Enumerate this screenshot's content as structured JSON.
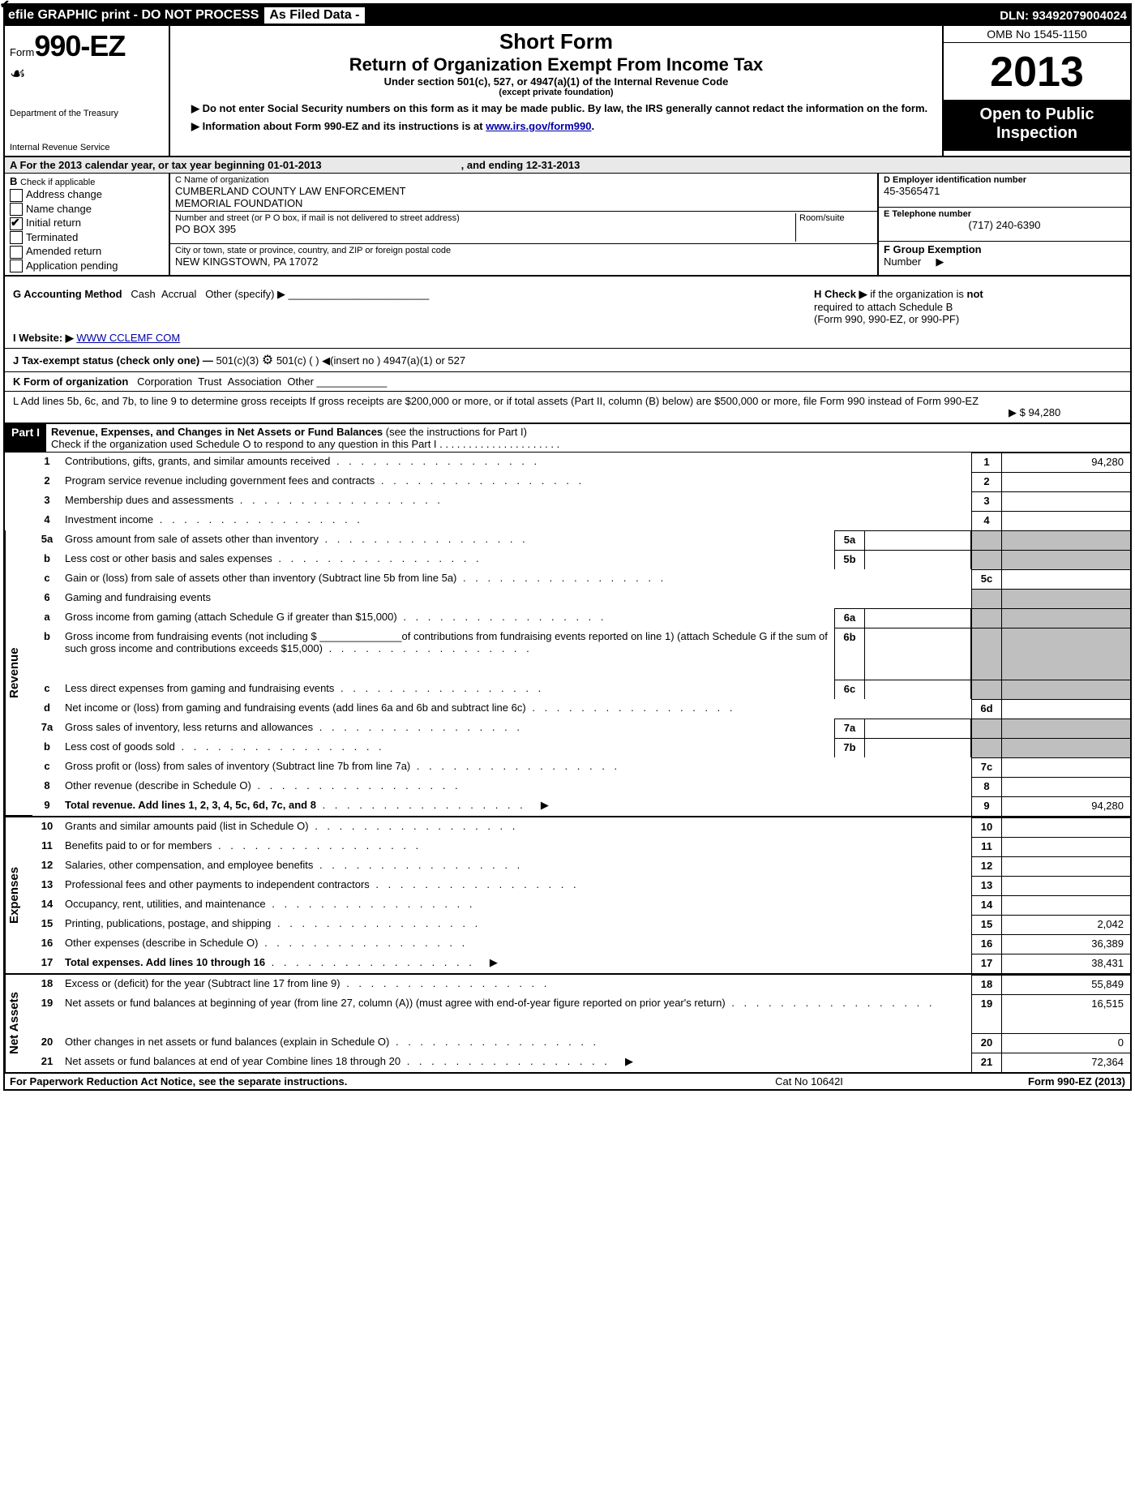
{
  "topbar": {
    "left": "efile GRAPHIC print - DO NOT PROCESS",
    "mid": "As Filed Data -",
    "dln": "DLN: 93492079004024"
  },
  "header": {
    "form_prefix": "Form",
    "form_no": "990-EZ",
    "dept1": "Department of the Treasury",
    "dept2": "Internal Revenue Service",
    "shortform": "Short Form",
    "title": "Return of Organization Exempt From Income Tax",
    "sub1": "Under section 501(c), 527, or 4947(a)(1) of the Internal Revenue Code",
    "sub2": "(except private foundation)",
    "note1": "▶ Do not enter Social Security numbers on this form as it may be made public. By law, the IRS generally cannot redact the information on the form.",
    "note2_pre": "▶ Information about Form 990-EZ and its instructions is at ",
    "note2_link": "www.irs.gov/form990",
    "note2_post": ".",
    "omb": "OMB No 1545-1150",
    "year": "2013",
    "open1": "Open to Public",
    "open2": "Inspection"
  },
  "sectionA": {
    "a_text": "A  For the 2013 calendar year, or tax year beginning 01-01-2013",
    "a_end": ", and ending 12-31-2013"
  },
  "boxB": {
    "title": "B",
    "subtitle": "Check if applicable",
    "opts": [
      "Address change",
      "Name change",
      "Initial return",
      "Terminated",
      "Amended return",
      "Application pending"
    ],
    "checked_idx": 2
  },
  "boxC": {
    "c_label": "C Name of organization",
    "c_name1": "CUMBERLAND COUNTY LAW ENFORCEMENT",
    "c_name2": "MEMORIAL FOUNDATION",
    "street_label": "Number and street (or P O box, if mail is not delivered to street address)",
    "room_label": "Room/suite",
    "street": "PO BOX 395",
    "city_label": "City or town, state or province, country, and ZIP or foreign postal code",
    "city": "NEW KINGSTOWN, PA  17072"
  },
  "boxD": {
    "d_label": "D Employer identification number",
    "d_val": "45-3565471",
    "e_label": "E Telephone number",
    "e_val": "(717) 240-6390",
    "f_label": "F Group Exemption",
    "f_label2": "Number",
    "f_arrow": "▶"
  },
  "rowG": {
    "g_text": "G Accounting Method",
    "g_cash": "Cash",
    "g_accr": "Accrual",
    "g_other": "Other (specify) ▶",
    "h_text_pre": "H  Check ▶",
    "h_text_post": "if the organization is ",
    "h_not": "not",
    "h_text2": "required to attach Schedule B",
    "h_text3": "(Form 990, 990-EZ, or 990-PF)"
  },
  "rowI": {
    "label": "I Website: ▶",
    "val": "WWW CCLEMF COM"
  },
  "rowJ": {
    "text": "J Tax-exempt status (check only one) —",
    "o1": "501(c)(3)",
    "o2": "501(c) (   ) ◀(insert no )",
    "o3": "4947(a)(1) or",
    "o4": "527"
  },
  "rowK": {
    "text": "K Form of organization",
    "opts": [
      "Corporation",
      "Trust",
      "Association",
      "Other"
    ]
  },
  "rowL": {
    "text": "L Add lines 5b, 6c, and 7b, to line 9 to determine gross receipts  If gross receipts are $200,000 or more, or if total assets (Part II, column (B) below) are $500,000 or more, file Form 990 instead of Form 990-EZ",
    "amt": "▶ $ 94,280"
  },
  "partI": {
    "bar": "Part I",
    "title": "Revenue, Expenses, and Changes in Net Assets or Fund Balances",
    "inst": "(see the instructions for Part I)",
    "check": "Check if the organization used Schedule O to respond to any question in this Part I . . . . . . . . . . . . . . . . . . . . ."
  },
  "vert": {
    "rev": "Revenue",
    "exp": "Expenses",
    "na": "Net Assets"
  },
  "lines": {
    "l1": {
      "n": "1",
      "t": "Contributions, gifts, grants, and similar amounts received",
      "rn": "1",
      "rv": "94,280"
    },
    "l2": {
      "n": "2",
      "t": "Program service revenue including government fees and contracts",
      "rn": "2",
      "rv": ""
    },
    "l3": {
      "n": "3",
      "t": "Membership dues and assessments",
      "rn": "3",
      "rv": ""
    },
    "l4": {
      "n": "4",
      "t": "Investment income",
      "rn": "4",
      "rv": ""
    },
    "l5a": {
      "n": "5a",
      "t": "Gross amount from sale of assets other than inventory",
      "mn": "5a"
    },
    "l5b": {
      "n": "b",
      "t": "Less  cost or other basis and sales expenses",
      "mn": "5b"
    },
    "l5c": {
      "n": "c",
      "t": "Gain or (loss) from sale of assets other than inventory (Subtract line 5b from line 5a)",
      "rn": "5c",
      "rv": ""
    },
    "l6": {
      "n": "6",
      "t": "Gaming and fundraising events"
    },
    "l6a": {
      "n": "a",
      "t": "Gross income from gaming (attach Schedule G if greater than $15,000)",
      "mn": "6a"
    },
    "l6b": {
      "n": "b",
      "t": "Gross income from fundraising events (not including $ ______________of contributions from fundraising events reported on line 1) (attach Schedule G if the sum of such gross income and contributions exceeds $15,000)",
      "mn": "6b"
    },
    "l6c": {
      "n": "c",
      "t": "Less  direct expenses from gaming and fundraising events",
      "mn": "6c"
    },
    "l6d": {
      "n": "d",
      "t": "Net income or (loss) from gaming and fundraising events (add lines 6a and 6b and subtract line 6c)",
      "rn": "6d",
      "rv": ""
    },
    "l7a": {
      "n": "7a",
      "t": "Gross sales of inventory, less returns and allowances",
      "mn": "7a"
    },
    "l7b": {
      "n": "b",
      "t": "Less  cost of goods sold",
      "mn": "7b"
    },
    "l7c": {
      "n": "c",
      "t": "Gross profit or (loss) from sales of inventory (Subtract line 7b from line 7a)",
      "rn": "7c",
      "rv": ""
    },
    "l8": {
      "n": "8",
      "t": "Other revenue (describe in Schedule O)",
      "rn": "8",
      "rv": ""
    },
    "l9": {
      "n": "9",
      "t": "Total revenue. Add lines 1, 2, 3, 4, 5c, 6d, 7c, and 8",
      "rn": "9",
      "rv": "94,280",
      "bold": true,
      "arrow": true
    },
    "l10": {
      "n": "10",
      "t": "Grants and similar amounts paid (list in Schedule O)",
      "rn": "10",
      "rv": ""
    },
    "l11": {
      "n": "11",
      "t": "Benefits paid to or for members",
      "rn": "11",
      "rv": ""
    },
    "l12": {
      "n": "12",
      "t": "Salaries, other compensation, and employee benefits",
      "rn": "12",
      "rv": ""
    },
    "l13": {
      "n": "13",
      "t": "Professional fees and other payments to independent contractors",
      "rn": "13",
      "rv": ""
    },
    "l14": {
      "n": "14",
      "t": "Occupancy, rent, utilities, and maintenance",
      "rn": "14",
      "rv": ""
    },
    "l15": {
      "n": "15",
      "t": "Printing, publications, postage, and shipping",
      "rn": "15",
      "rv": "2,042"
    },
    "l16": {
      "n": "16",
      "t": "Other expenses (describe in Schedule O)",
      "rn": "16",
      "rv": "36,389"
    },
    "l17": {
      "n": "17",
      "t": "Total expenses. Add lines 10 through 16",
      "rn": "17",
      "rv": "38,431",
      "bold": true,
      "arrow": true
    },
    "l18": {
      "n": "18",
      "t": "Excess or (deficit) for the year (Subtract line 17 from line 9)",
      "rn": "18",
      "rv": "55,849"
    },
    "l19": {
      "n": "19",
      "t": "Net assets or fund balances at beginning of year (from line 27, column (A)) (must agree with end-of-year figure reported on prior year's return)",
      "rn": "19",
      "rv": "16,515"
    },
    "l20": {
      "n": "20",
      "t": "Other changes in net assets or fund balances (explain in Schedule O)",
      "rn": "20",
      "rv": "0"
    },
    "l21": {
      "n": "21",
      "t": "Net assets or fund balances at end of year  Combine lines 18 through 20",
      "rn": "21",
      "rv": "72,364",
      "arrow": true
    }
  },
  "footer": {
    "f1": "For Paperwork Reduction Act Notice, see the separate instructions.",
    "f2": "Cat No 10642I",
    "f3_pre": "Form ",
    "f3_b": "990-EZ",
    "f3_post": " (2013)"
  }
}
